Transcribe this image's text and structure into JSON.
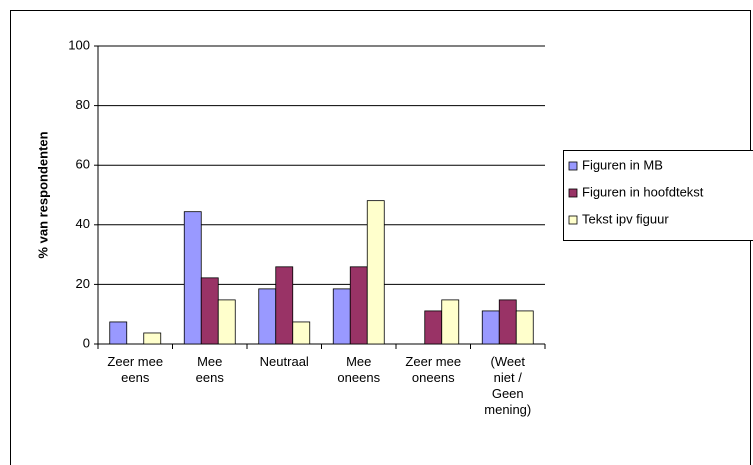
{
  "chart_data": {
    "type": "bar",
    "y_label": "% van respondenten",
    "categories": [
      "Zeer mee eens",
      "Mee eens",
      "Neutraal",
      "Mee oneens",
      "Zeer mee oneens",
      "(Weet niet / Geen mening)"
    ],
    "series": [
      {
        "name": "Figuren in MB",
        "color": "#9999ff",
        "values": [
          7.4,
          44.4,
          18.5,
          18.5,
          0,
          11.1
        ]
      },
      {
        "name": "Figuren in hoofdtekst",
        "color": "#993366",
        "values": [
          0,
          22.2,
          25.9,
          25.9,
          11.1,
          14.8
        ]
      },
      {
        "name": "Tekst ipv figuur",
        "color": "#ffffcc",
        "values": [
          3.7,
          14.8,
          7.4,
          48.1,
          14.8,
          11.1
        ]
      }
    ],
    "ylim": [
      0,
      100
    ],
    "yticks": [
      0,
      20,
      40,
      60,
      80,
      100
    ],
    "grid": true,
    "legend": "right"
  }
}
